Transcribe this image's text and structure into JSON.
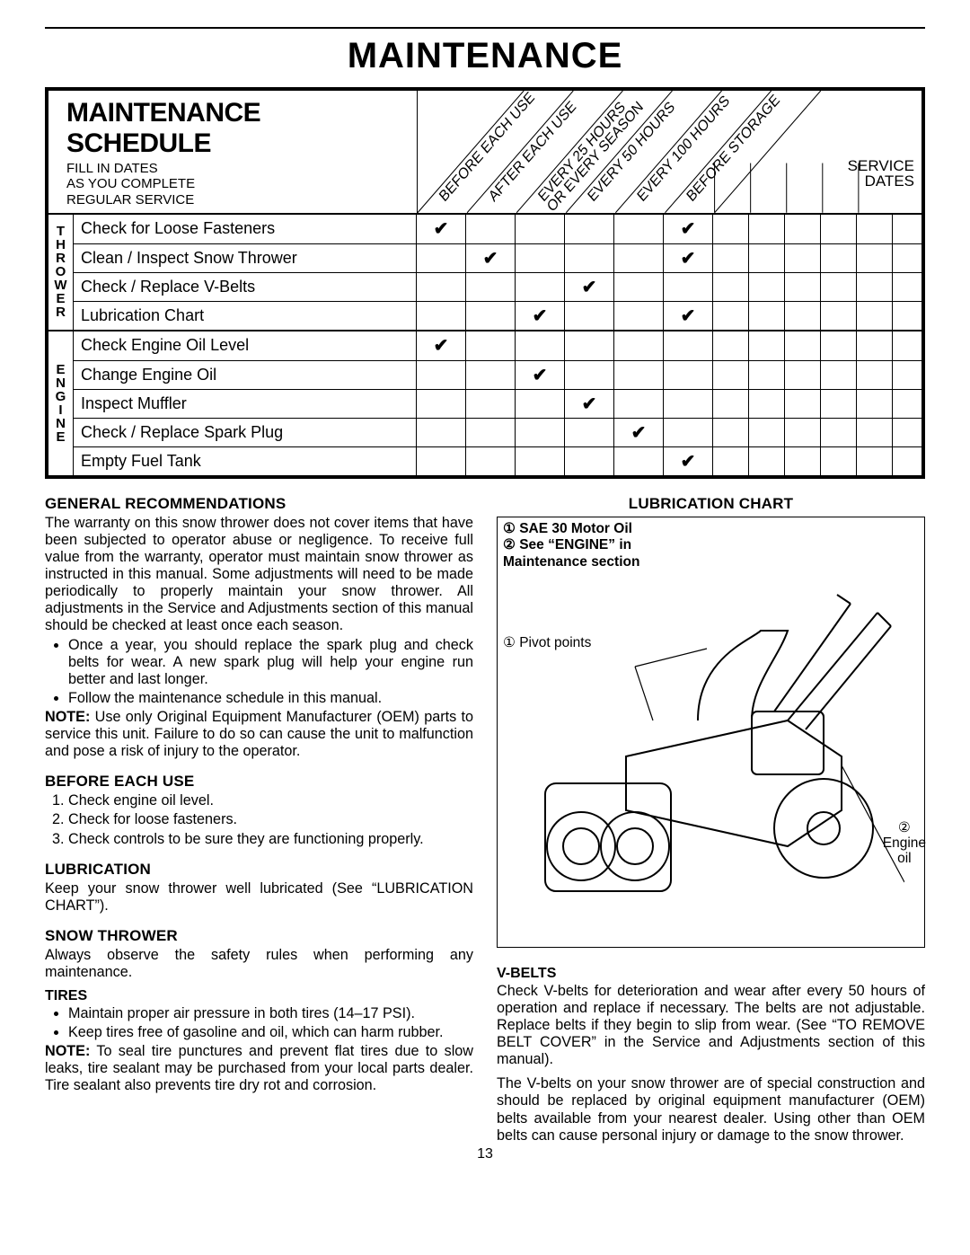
{
  "page_title": "MAINTENANCE",
  "schedule": {
    "title": "MAINTENANCE SCHEDULE",
    "subtitle": "FILL IN DATES\nAS YOU COMPLETE\nREGULAR SERVICE",
    "service_dates_label": "SERVICE\nDATES",
    "interval_columns": [
      "BEFORE EACH USE",
      "AFTER EACH USE",
      "EVERY 25 HOURS\nOR EVERY SEASON",
      "EVERY 50 HOURS",
      "EVERY 100 HOURS",
      "BEFORE STORAGE"
    ],
    "date_columns": 5,
    "groups": [
      {
        "category": "THROWER",
        "rows": [
          {
            "task": "Check for Loose Fasteners",
            "checks": [
              true,
              false,
              false,
              false,
              false,
              true
            ]
          },
          {
            "task": "Clean / Inspect Snow Thrower",
            "checks": [
              false,
              true,
              false,
              false,
              false,
              true
            ]
          },
          {
            "task": "Check / Replace V-Belts",
            "checks": [
              false,
              false,
              false,
              true,
              false,
              false
            ]
          },
          {
            "task": "Lubrication Chart",
            "checks": [
              false,
              false,
              true,
              false,
              false,
              true
            ]
          }
        ]
      },
      {
        "category": "ENGINE",
        "rows": [
          {
            "task": "Check Engine Oil Level",
            "checks": [
              true,
              false,
              false,
              false,
              false,
              false
            ]
          },
          {
            "task": "Change Engine Oil",
            "checks": [
              false,
              false,
              true,
              false,
              false,
              false
            ]
          },
          {
            "task": "Inspect Muffler",
            "checks": [
              false,
              false,
              false,
              true,
              false,
              false
            ]
          },
          {
            "task": "Check / Replace Spark Plug",
            "checks": [
              false,
              false,
              false,
              false,
              true,
              false
            ]
          },
          {
            "task": "Empty Fuel Tank",
            "checks": [
              false,
              false,
              false,
              false,
              false,
              true
            ]
          }
        ]
      }
    ]
  },
  "left": {
    "gen_heading": "GENERAL RECOMMENDATIONS",
    "gen_body": "The warranty on this snow thrower does not cover items that have been subjected to operator abuse or negligence.  To receive full value from the warranty, operator must maintain snow thrower as instructed in this manual.  Some adjustments will need to be made periodically to properly maintain your snow thrower.  All adjustments in the Service and Adjustments section of this manual should be checked at least once each season.",
    "gen_bullets": [
      "Once a year, you should replace the spark plug and check belts for wear.  A new spark plug will help your engine run better and last longer.",
      "Follow the maintenance schedule in this manual."
    ],
    "gen_note_label": "NOTE:",
    "gen_note": "Use only Original Equipment Manufacturer (OEM) parts to service this unit.  Failure to do so can cause the unit to malfunction and pose a risk of injury to the operator.",
    "before_heading": "BEFORE EACH USE",
    "before_list": [
      "Check engine oil level.",
      "Check for loose fasteners.",
      "Check controls to be sure they are functioning properly."
    ],
    "lub_heading": "LUBRICATION",
    "lub_body": "Keep your snow thrower well lubricated (See “LUBRICATION CHART”).",
    "st_heading": "SNOW THROWER",
    "st_body": "Always observe the safety rules when performing any maintenance.",
    "tires_sub": "TIRES",
    "tires_bullets": [
      "Maintain proper air pressure in both tires (14–17 PSI).",
      "Keep tires free of gasoline and oil, which can harm rubber."
    ],
    "tires_note_label": "NOTE:",
    "tires_note": "To seal tire punctures and prevent flat tires due to slow leaks, tire sealant may be purchased from your local parts dealer. Tire sealant also prevents tire dry rot and corrosion."
  },
  "right": {
    "chart_heading": "LUBRICATION CHART",
    "legend1": "① SAE 30 Motor Oil",
    "legend2": "② See “ENGINE” in Maintenance section",
    "pivot_label": "① Pivot points",
    "engine_oil_label": "②\nEngine\noil",
    "vbelts_sub": "V-BELTS",
    "vbelts_p1": "Check V-belts for deterioration and wear after every 50 hours of operation and replace if necessary. The belts are not adjustable. Replace belts if they begin to slip from wear. (See “TO REMOVE BELT COVER” in the Service and Adjustments section of this manual).",
    "vbelts_p2": "The V-belts on your snow thrower are of special construction and should be replaced by original equipment manufacturer (OEM) belts available from your nearest dealer. Using other than OEM belts can cause personal injury or damage to the snow thrower."
  },
  "page_number": "13",
  "colors": {
    "text": "#000000",
    "bg": "#ffffff"
  }
}
